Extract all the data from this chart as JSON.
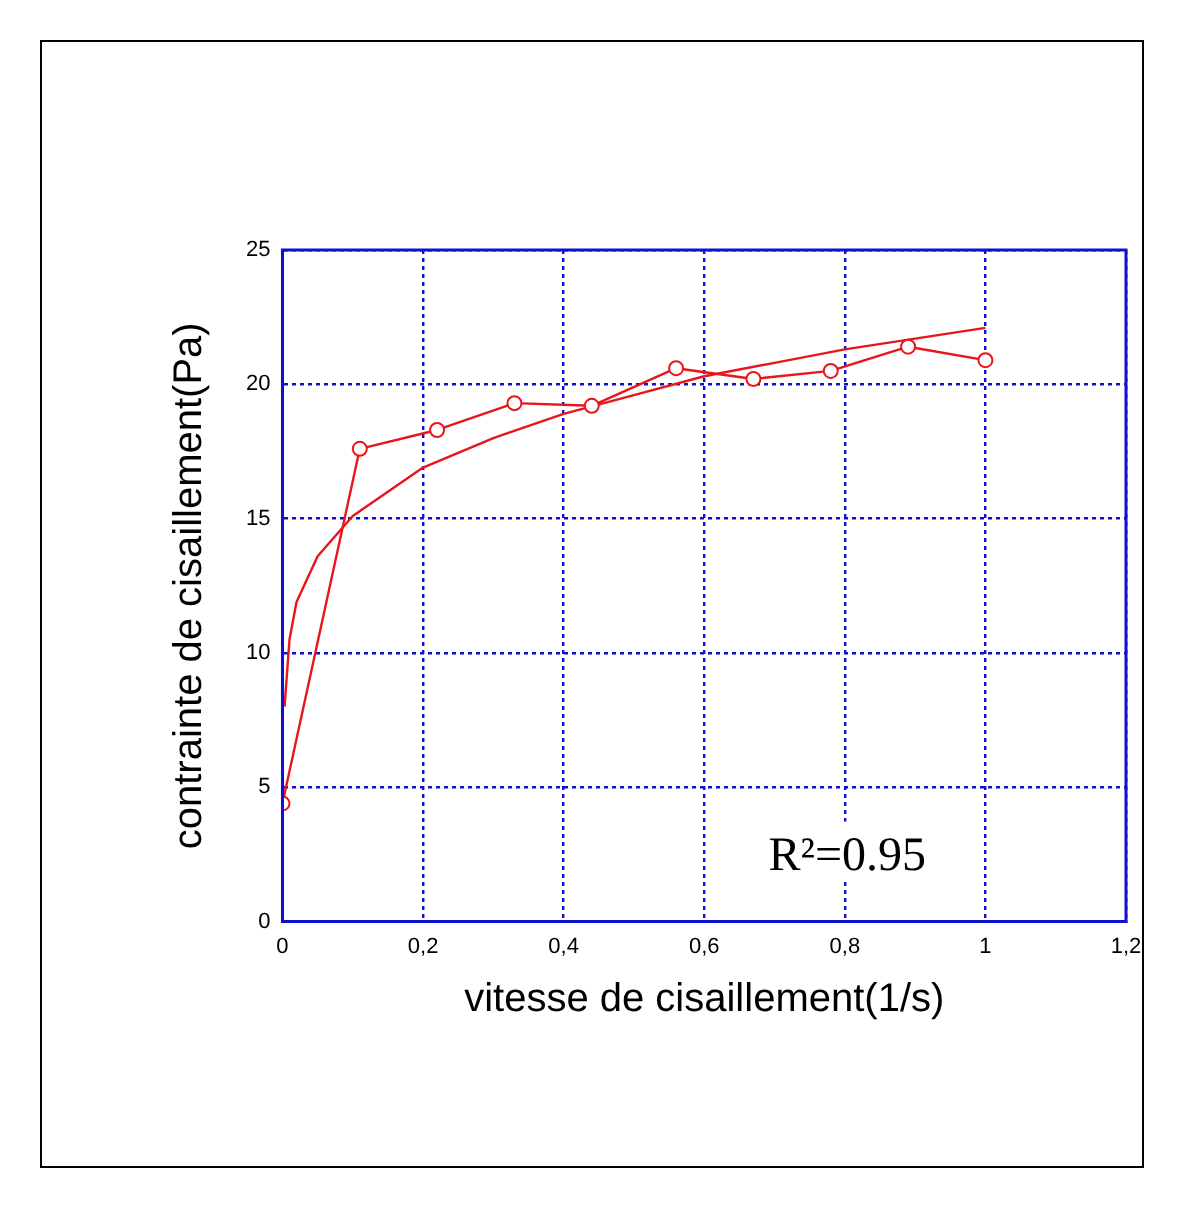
{
  "chart_data": {
    "type": "line",
    "xlabel": "vitesse de cisaillement(1/s)",
    "ylabel": "contrainte de cisaillement(Pa)",
    "xlim": [
      0,
      1.2
    ],
    "ylim": [
      0,
      25
    ],
    "xticks": [
      0,
      {
        "value": 0.2,
        "label": "0,2"
      },
      {
        "value": 0.4,
        "label": "0,4"
      },
      {
        "value": 0.6,
        "label": "0,6"
      },
      {
        "value": 0.8,
        "label": "0,8"
      },
      1,
      {
        "value": 1.2,
        "label": "1,2"
      }
    ],
    "yticks": [
      0,
      5,
      10,
      15,
      20,
      25
    ],
    "grid": true,
    "legend": false,
    "series": [
      {
        "color": "#e8151b",
        "marker": "circle",
        "x": [
          0,
          0.11,
          0.22,
          0.33,
          0.44,
          0.56,
          0.67,
          0.78,
          0.89,
          1
        ],
        "values": [
          4.4,
          17.6,
          18.3,
          19.3,
          19.2,
          20.6,
          20.2,
          20.5,
          21.4,
          20.9
        ]
      },
      {
        "color": "#e8151b",
        "marker": "none",
        "x": [
          0.003,
          0.01,
          0.02,
          0.05,
          0.1,
          0.2,
          0.3,
          0.4,
          0.5,
          0.6,
          0.7,
          0.8,
          0.9,
          1
        ],
        "values": [
          8.0,
          10.5,
          11.9,
          13.6,
          15.1,
          16.9,
          18.0,
          18.9,
          19.6,
          20.3,
          20.8,
          21.3,
          21.7,
          22.1
        ]
      }
    ],
    "annotations": [
      "R²=0.95"
    ]
  }
}
